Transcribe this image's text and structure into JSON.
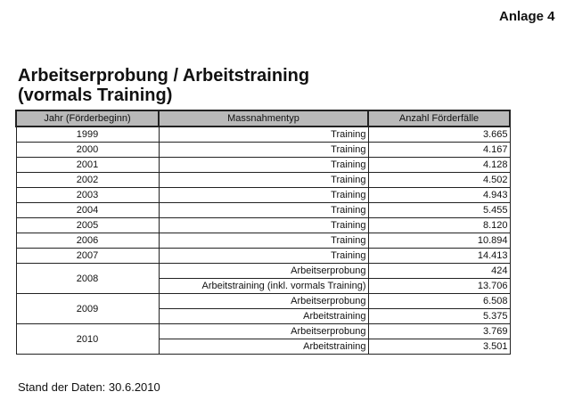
{
  "header": {
    "annex": "Anlage 4"
  },
  "title": {
    "line1": "Arbeitserprobung / Arbeitstraining",
    "line2": "(vormals Training)"
  },
  "table": {
    "columns": [
      "Jahr (Förderbeginn)",
      "Massnahmentyp",
      "Anzahl Förderfälle"
    ],
    "rows": [
      {
        "year": "1999",
        "entries": [
          {
            "type": "Training",
            "count": "3.665"
          }
        ]
      },
      {
        "year": "2000",
        "entries": [
          {
            "type": "Training",
            "count": "4.167"
          }
        ]
      },
      {
        "year": "2001",
        "entries": [
          {
            "type": "Training",
            "count": "4.128"
          }
        ]
      },
      {
        "year": "2002",
        "entries": [
          {
            "type": "Training",
            "count": "4.502"
          }
        ]
      },
      {
        "year": "2003",
        "entries": [
          {
            "type": "Training",
            "count": "4.943"
          }
        ]
      },
      {
        "year": "2004",
        "entries": [
          {
            "type": "Training",
            "count": "5.455"
          }
        ]
      },
      {
        "year": "2005",
        "entries": [
          {
            "type": "Training",
            "count": "8.120"
          }
        ]
      },
      {
        "year": "2006",
        "entries": [
          {
            "type": "Training",
            "count": "10.894"
          }
        ]
      },
      {
        "year": "2007",
        "entries": [
          {
            "type": "Training",
            "count": "14.413"
          }
        ]
      },
      {
        "year": "2008",
        "entries": [
          {
            "type": "Arbeitserprobung",
            "count": "424"
          },
          {
            "type": "Arbeitstraining (inkl. vormals Training)",
            "count": "13.706"
          }
        ]
      },
      {
        "year": "2009",
        "entries": [
          {
            "type": "Arbeitserprobung",
            "count": "6.508"
          },
          {
            "type": "Arbeitstraining",
            "count": "5.375"
          }
        ]
      },
      {
        "year": "2010",
        "entries": [
          {
            "type": "Arbeitserprobung",
            "count": "3.769"
          },
          {
            "type": "Arbeitstraining",
            "count": "3.501"
          }
        ]
      }
    ]
  },
  "footer": {
    "note": "Stand der Daten: 30.6.2010"
  }
}
